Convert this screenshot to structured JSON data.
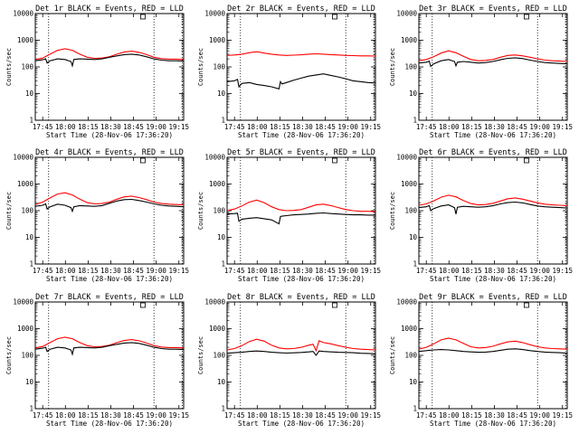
{
  "x_ticks": [
    "17:45",
    "18:00",
    "18:15",
    "18:30",
    "18:45",
    "19:00",
    "19:15"
  ],
  "y_ticks": [
    "1",
    "10",
    "100",
    "1000",
    "10000"
  ],
  "xlabel": "Start Time (28-Nov-06 17:36:20)",
  "ylabel": "Counts/sec",
  "chart_data": [
    {
      "type": "line",
      "title": "Det 1r BLACK = Events, RED = LLD",
      "xlabel": "Start Time (28-Nov-06 17:36:20)",
      "ylabel": "Counts/sec",
      "log_y": true,
      "ylim": [
        1,
        10000
      ],
      "series": [
        {
          "color": "#ff0000",
          "x": [
            0,
            5,
            10,
            15,
            20,
            25,
            30,
            35,
            40,
            45,
            50,
            55,
            60,
            65,
            70,
            75,
            80,
            85,
            90,
            95,
            100
          ],
          "values": [
            190,
            215,
            300,
            420,
            480,
            420,
            300,
            230,
            210,
            215,
            240,
            300,
            360,
            390,
            350,
            290,
            230,
            205,
            195,
            195,
            190
          ]
        },
        {
          "color": "#000000",
          "x": [
            0,
            5,
            7,
            8,
            10,
            15,
            20,
            24,
            25,
            26,
            30,
            35,
            40,
            45,
            50,
            55,
            60,
            65,
            70,
            75,
            80,
            85,
            90,
            95,
            100
          ],
          "values": [
            170,
            185,
            200,
            140,
            170,
            200,
            190,
            160,
            110,
            190,
            200,
            195,
            190,
            200,
            230,
            260,
            290,
            300,
            280,
            240,
            200,
            180,
            170,
            170,
            165
          ]
        }
      ]
    },
    {
      "type": "line",
      "title": "Det 2r BLACK = Events, RED = LLD",
      "xlabel": "Start Time (28-Nov-06 17:36:20)",
      "ylabel": "Counts/sec",
      "log_y": true,
      "ylim": [
        1,
        10000
      ],
      "series": [
        {
          "color": "#ff0000",
          "x": [
            0,
            5,
            10,
            15,
            20,
            25,
            30,
            35,
            40,
            45,
            50,
            55,
            60,
            65,
            70,
            75,
            80,
            85,
            90,
            95,
            100
          ],
          "values": [
            270,
            280,
            300,
            340,
            370,
            330,
            300,
            280,
            270,
            275,
            285,
            300,
            310,
            300,
            290,
            280,
            270,
            265,
            260,
            260,
            255
          ]
        },
        {
          "color": "#000000",
          "x": [
            0,
            5,
            7,
            8,
            10,
            15,
            20,
            25,
            30,
            35,
            36,
            37,
            40,
            45,
            50,
            55,
            60,
            65,
            70,
            75,
            80,
            85,
            90,
            95,
            100
          ],
          "values": [
            28,
            30,
            34,
            18,
            24,
            26,
            22,
            20,
            18,
            15,
            28,
            23,
            26,
            32,
            38,
            45,
            50,
            55,
            48,
            42,
            36,
            30,
            28,
            26,
            25
          ]
        }
      ]
    },
    {
      "type": "line",
      "title": "Det 3r BLACK = Events, RED = LLD",
      "xlabel": "Start Time (28-Nov-06 17:36:20)",
      "ylabel": "Counts/sec",
      "log_y": true,
      "ylim": [
        1,
        10000
      ],
      "series": [
        {
          "color": "#ff0000",
          "x": [
            0,
            5,
            10,
            15,
            20,
            25,
            30,
            35,
            40,
            45,
            50,
            55,
            60,
            65,
            70,
            75,
            80,
            85,
            90,
            95,
            100
          ],
          "values": [
            170,
            190,
            240,
            330,
            400,
            340,
            250,
            190,
            170,
            175,
            190,
            230,
            270,
            280,
            260,
            230,
            200,
            180,
            170,
            165,
            160
          ]
        },
        {
          "color": "#000000",
          "x": [
            0,
            5,
            7,
            8,
            10,
            15,
            20,
            24,
            25,
            26,
            30,
            35,
            40,
            45,
            50,
            55,
            60,
            65,
            70,
            75,
            80,
            85,
            90,
            95,
            100
          ],
          "values": [
            140,
            150,
            165,
            105,
            130,
            170,
            190,
            160,
            110,
            150,
            160,
            150,
            140,
            145,
            160,
            185,
            210,
            220,
            205,
            180,
            160,
            145,
            140,
            135,
            130
          ]
        }
      ]
    },
    {
      "type": "line",
      "title": "Det 4r BLACK = Events, RED = LLD",
      "xlabel": "Start Time (28-Nov-06 17:36:20)",
      "ylabel": "Counts/sec",
      "log_y": true,
      "ylim": [
        1,
        10000
      ],
      "series": [
        {
          "color": "#ff0000",
          "x": [
            0,
            5,
            10,
            15,
            20,
            25,
            30,
            35,
            40,
            45,
            50,
            55,
            60,
            65,
            70,
            75,
            80,
            85,
            90,
            95,
            100
          ],
          "values": [
            170,
            210,
            300,
            420,
            470,
            390,
            270,
            200,
            180,
            185,
            210,
            270,
            330,
            350,
            310,
            260,
            210,
            185,
            175,
            170,
            165
          ]
        },
        {
          "color": "#000000",
          "x": [
            0,
            5,
            7,
            8,
            10,
            15,
            20,
            24,
            25,
            26,
            30,
            35,
            40,
            45,
            50,
            55,
            60,
            65,
            70,
            75,
            80,
            85,
            90,
            95,
            100
          ],
          "values": [
            145,
            160,
            180,
            115,
            140,
            175,
            160,
            130,
            95,
            140,
            155,
            150,
            145,
            155,
            190,
            230,
            260,
            265,
            240,
            210,
            180,
            160,
            150,
            145,
            140
          ]
        }
      ]
    },
    {
      "type": "line",
      "title": "Det 5r BLACK = Events, RED = LLD",
      "xlabel": "Start Time (28-Nov-06 17:36:20)",
      "ylabel": "Counts/sec",
      "log_y": true,
      "ylim": [
        1,
        10000
      ],
      "series": [
        {
          "color": "#ff0000",
          "x": [
            0,
            5,
            10,
            15,
            20,
            25,
            30,
            35,
            40,
            45,
            50,
            55,
            60,
            65,
            70,
            75,
            80,
            85,
            90,
            95,
            100
          ],
          "values": [
            100,
            115,
            150,
            210,
            250,
            200,
            140,
            110,
            100,
            102,
            110,
            135,
            165,
            175,
            155,
            130,
            110,
            100,
            95,
            95,
            92
          ]
        },
        {
          "color": "#000000",
          "x": [
            0,
            5,
            7,
            8,
            10,
            15,
            20,
            25,
            30,
            35,
            36,
            37,
            40,
            45,
            50,
            55,
            60,
            65,
            70,
            75,
            80,
            85,
            90,
            95,
            100
          ],
          "values": [
            75,
            78,
            80,
            40,
            48,
            52,
            55,
            50,
            45,
            32,
            60,
            62,
            65,
            70,
            72,
            75,
            80,
            82,
            78,
            75,
            72,
            70,
            70,
            68,
            68
          ]
        }
      ]
    },
    {
      "type": "line",
      "title": "Det 6r BLACK = Events, RED = LLD",
      "xlabel": "Start Time (28-Nov-06 17:36:20)",
      "ylabel": "Counts/sec",
      "log_y": true,
      "ylim": [
        1,
        10000
      ],
      "series": [
        {
          "color": "#ff0000",
          "x": [
            0,
            5,
            10,
            15,
            20,
            25,
            30,
            35,
            40,
            45,
            50,
            55,
            60,
            65,
            70,
            75,
            80,
            85,
            90,
            95,
            100
          ],
          "values": [
            160,
            180,
            230,
            320,
            380,
            330,
            240,
            185,
            165,
            170,
            190,
            230,
            280,
            300,
            270,
            230,
            195,
            175,
            165,
            160,
            155
          ]
        },
        {
          "color": "#000000",
          "x": [
            0,
            5,
            7,
            8,
            10,
            15,
            20,
            24,
            25,
            26,
            30,
            35,
            40,
            45,
            50,
            55,
            60,
            65,
            70,
            75,
            80,
            85,
            90,
            95,
            100
          ],
          "values": [
            130,
            140,
            155,
            100,
            120,
            150,
            165,
            130,
            75,
            135,
            145,
            140,
            135,
            140,
            155,
            180,
            200,
            210,
            195,
            170,
            150,
            140,
            135,
            130,
            125
          ]
        }
      ]
    },
    {
      "type": "line",
      "title": "Det 7r BLACK = Events, RED = LLD",
      "xlabel": "Start Time (28-Nov-06 17:36:20)",
      "ylabel": "Counts/sec",
      "log_y": true,
      "ylim": [
        1,
        10000
      ],
      "series": [
        {
          "color": "#ff0000",
          "x": [
            0,
            5,
            10,
            15,
            20,
            25,
            30,
            35,
            40,
            45,
            50,
            55,
            60,
            65,
            70,
            75,
            80,
            85,
            90,
            95,
            100
          ],
          "values": [
            190,
            215,
            300,
            420,
            480,
            420,
            300,
            230,
            210,
            215,
            240,
            300,
            360,
            390,
            350,
            290,
            230,
            205,
            195,
            195,
            190
          ]
        },
        {
          "color": "#000000",
          "x": [
            0,
            5,
            7,
            8,
            10,
            15,
            20,
            24,
            25,
            26,
            30,
            35,
            40,
            45,
            50,
            55,
            60,
            65,
            70,
            75,
            80,
            85,
            90,
            95,
            100
          ],
          "values": [
            170,
            185,
            200,
            140,
            170,
            200,
            190,
            160,
            110,
            190,
            200,
            195,
            190,
            200,
            230,
            260,
            290,
            300,
            280,
            240,
            200,
            180,
            170,
            170,
            165
          ]
        }
      ]
    },
    {
      "type": "line",
      "title": "Det 8r BLACK = Events, RED = LLD",
      "xlabel": "Start Time (28-Nov-06 17:36:20)",
      "ylabel": "Counts/sec",
      "log_y": true,
      "ylim": [
        1,
        10000
      ],
      "series": [
        {
          "color": "#ff0000",
          "x": [
            0,
            5,
            10,
            15,
            20,
            25,
            30,
            35,
            40,
            45,
            50,
            55,
            58,
            60,
            62,
            65,
            70,
            75,
            80,
            85,
            90,
            95,
            100
          ],
          "values": [
            160,
            180,
            230,
            330,
            400,
            340,
            240,
            190,
            175,
            180,
            200,
            240,
            260,
            150,
            350,
            300,
            270,
            230,
            200,
            180,
            170,
            165,
            160
          ]
        },
        {
          "color": "#000000",
          "x": [
            0,
            5,
            10,
            15,
            20,
            25,
            30,
            35,
            40,
            45,
            50,
            55,
            58,
            60,
            62,
            65,
            70,
            75,
            80,
            85,
            90,
            95,
            100
          ],
          "values": [
            120,
            125,
            130,
            140,
            145,
            140,
            130,
            125,
            122,
            124,
            128,
            135,
            140,
            100,
            145,
            140,
            135,
            130,
            128,
            125,
            120,
            118,
            115
          ]
        }
      ]
    },
    {
      "type": "line",
      "title": "Det 9r BLACK = Events, RED = LLD",
      "xlabel": "Start Time (28-Nov-06 17:36:20)",
      "ylabel": "Counts/sec",
      "log_y": true,
      "ylim": [
        1,
        10000
      ],
      "series": [
        {
          "color": "#ff0000",
          "x": [
            0,
            5,
            10,
            15,
            20,
            25,
            30,
            35,
            40,
            45,
            50,
            55,
            60,
            65,
            70,
            75,
            80,
            85,
            90,
            95,
            100
          ],
          "values": [
            170,
            200,
            270,
            380,
            440,
            380,
            280,
            210,
            190,
            195,
            220,
            270,
            320,
            340,
            300,
            250,
            210,
            190,
            180,
            175,
            170
          ]
        },
        {
          "color": "#000000",
          "x": [
            0,
            5,
            10,
            15,
            20,
            25,
            30,
            35,
            40,
            45,
            50,
            55,
            60,
            65,
            70,
            75,
            80,
            85,
            90,
            95,
            100
          ],
          "values": [
            140,
            150,
            160,
            165,
            160,
            150,
            140,
            135,
            130,
            132,
            140,
            155,
            170,
            175,
            165,
            150,
            140,
            132,
            128,
            125,
            120
          ]
        }
      ]
    }
  ]
}
